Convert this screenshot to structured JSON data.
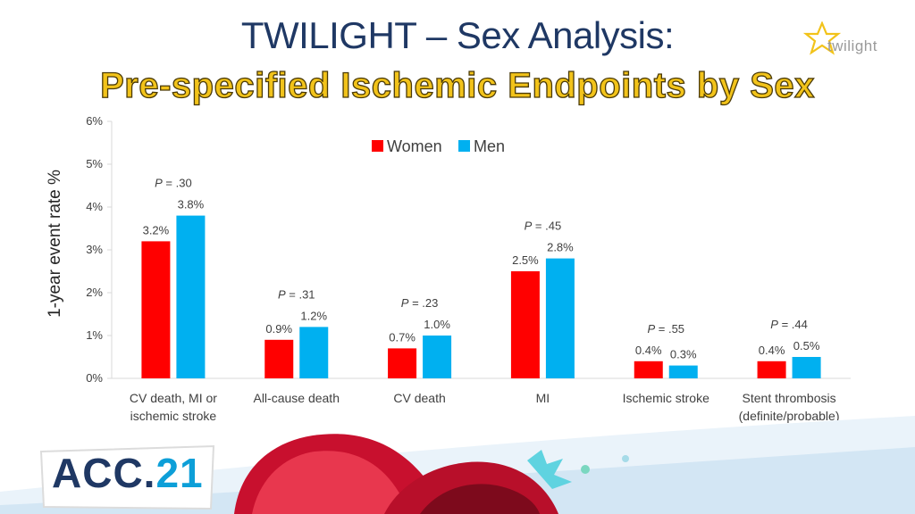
{
  "header": {
    "title": "TWILIGHT – Sex Analysis:",
    "subtitle": "Pre-specified Ischemic Endpoints by Sex",
    "logo_text": "twilight"
  },
  "footer": {
    "badge_prefix": "ACC.",
    "badge_suffix": "21"
  },
  "colors": {
    "women": "#ff0000",
    "men": "#00b0f0"
  },
  "chart_data": {
    "type": "bar",
    "title": "",
    "ylabel": "1-year event rate %",
    "xlabel": "",
    "ylim": [
      0,
      6
    ],
    "yticks": [
      "0%",
      "1%",
      "2%",
      "3%",
      "4%",
      "5%",
      "6%"
    ],
    "categories": [
      [
        "CV death, MI or",
        "ischemic stroke"
      ],
      [
        "All-cause death"
      ],
      [
        "CV death"
      ],
      [
        "MI"
      ],
      [
        "Ischemic stroke"
      ],
      [
        "Stent thrombosis",
        "(definite/probable)"
      ]
    ],
    "series": [
      {
        "name": "Women",
        "values": [
          3.2,
          0.9,
          0.7,
          2.5,
          0.4,
          0.4
        ],
        "labels": [
          "3.2%",
          "0.9%",
          "0.7%",
          "2.5%",
          "0.4%",
          "0.4%"
        ]
      },
      {
        "name": "Men",
        "values": [
          3.8,
          1.2,
          1.0,
          2.8,
          0.3,
          0.5
        ],
        "labels": [
          "3.8%",
          "1.2%",
          "1.0%",
          "2.8%",
          "0.3%",
          "0.5%"
        ]
      }
    ],
    "p_values": [
      ".30",
      ".31",
      ".23",
      ".45",
      ".55",
      ".44"
    ],
    "p_prefix": "P",
    "legend": "top-center"
  }
}
